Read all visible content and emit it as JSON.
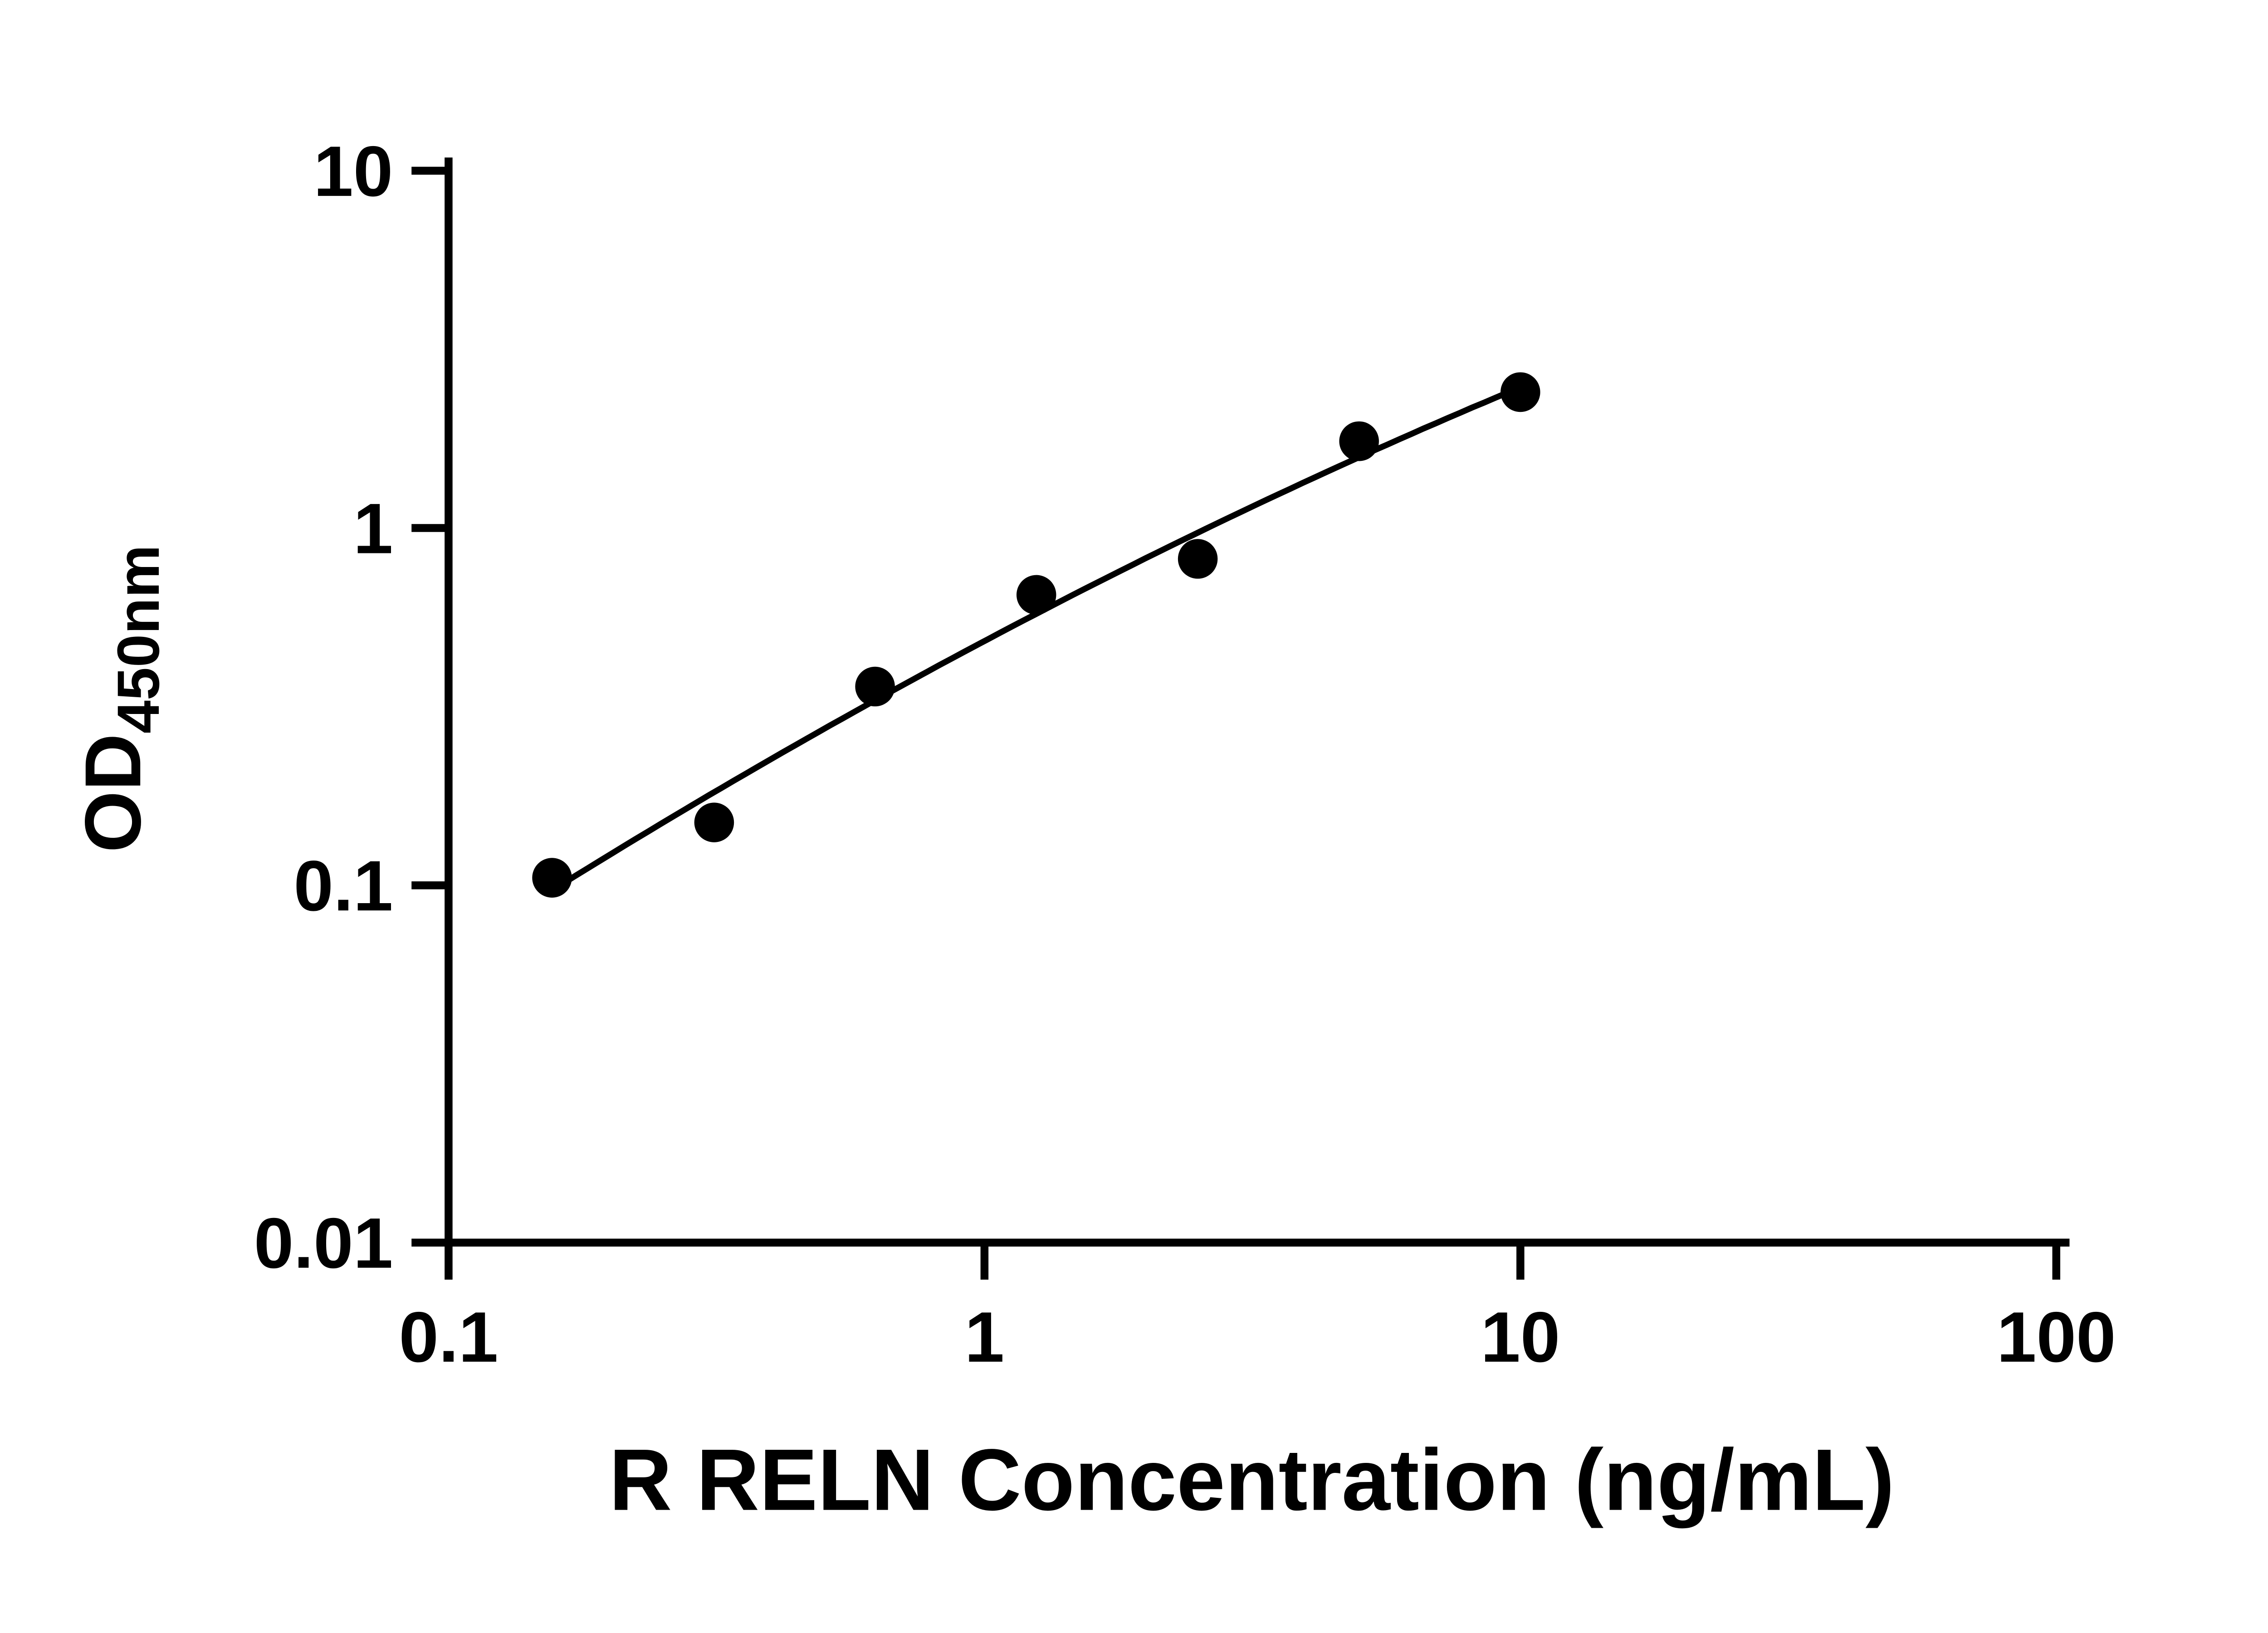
{
  "figure": {
    "background": "#ffffff",
    "foreground": "#000000"
  },
  "chart_data": {
    "type": "scatter",
    "title": "",
    "xlabel": "R RELN Concentration (ng/mL)",
    "ylabel": "OD450nm",
    "ylabel_parts": {
      "main": "OD",
      "subscript": "450nm"
    },
    "x_scale": "log10",
    "y_scale": "log10",
    "xlim": [
      0.1,
      100
    ],
    "ylim": [
      0.01,
      10
    ],
    "x_ticks": [
      "0.1",
      "1",
      "10",
      "100"
    ],
    "y_ticks": [
      "0.01",
      "0.1",
      "1",
      "10"
    ],
    "grid": false,
    "legend": false,
    "marker": {
      "shape": "circle",
      "color": "#000000"
    },
    "trend_line": {
      "present": true,
      "color": "#000000",
      "fit": "smooth fit through points in log-log space"
    },
    "series": [
      {
        "x": [
          0.156,
          0.313,
          0.625,
          1.25,
          2.5,
          5,
          10
        ],
        "y": [
          0.105,
          0.15,
          0.36,
          0.65,
          0.82,
          1.75,
          2.4
        ]
      }
    ]
  }
}
